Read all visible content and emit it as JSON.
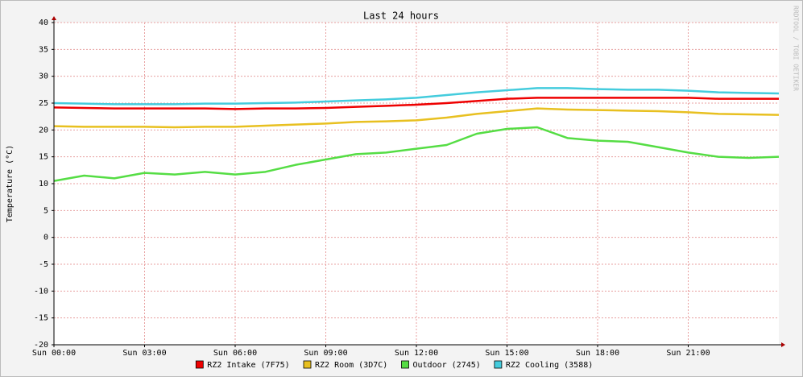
{
  "chart_data": {
    "type": "line",
    "title": "Last 24 hours",
    "y_label": "Temperature (°C)",
    "watermark": "RRDTOOL / TOBI OETIKER",
    "x": [
      0,
      1,
      2,
      3,
      4,
      5,
      6,
      7,
      8,
      9,
      10,
      11,
      12,
      13,
      14,
      15,
      16,
      17,
      18,
      19,
      20,
      21,
      22,
      23,
      24
    ],
    "xlim": [
      0,
      24
    ],
    "xticks": [
      {
        "value": 0,
        "label": "Sun 00:00"
      },
      {
        "value": 3,
        "label": "Sun 03:00"
      },
      {
        "value": 6,
        "label": "Sun 06:00"
      },
      {
        "value": 9,
        "label": "Sun 09:00"
      },
      {
        "value": 12,
        "label": "Sun 12:00"
      },
      {
        "value": 15,
        "label": "Sun 15:00"
      },
      {
        "value": 18,
        "label": "Sun 18:00"
      },
      {
        "value": 21,
        "label": "Sun 21:00"
      }
    ],
    "ylim": [
      -20,
      40
    ],
    "yticks": [
      -20,
      -15,
      -10,
      -5,
      0,
      5,
      10,
      15,
      20,
      25,
      30,
      35,
      40
    ],
    "grid": true,
    "legend": "bottom",
    "series": [
      {
        "name": "RZ2 Intake (7F75)",
        "color": "#ee0000",
        "values": [
          24.2,
          24.1,
          24,
          24,
          24,
          24,
          23.9,
          24,
          24,
          24.1,
          24.3,
          24.5,
          24.7,
          25,
          25.4,
          25.8,
          26,
          26,
          26,
          26,
          26,
          26,
          25.8,
          25.8,
          25.8
        ]
      },
      {
        "name": "RZ2 Room (3D7C)",
        "color": "#e8c020",
        "values": [
          20.7,
          20.6,
          20.6,
          20.6,
          20.5,
          20.6,
          20.6,
          20.8,
          21,
          21.2,
          21.5,
          21.6,
          21.8,
          22.3,
          23,
          23.5,
          24,
          23.8,
          23.7,
          23.6,
          23.5,
          23.3,
          23,
          22.9,
          22.8
        ]
      },
      {
        "name": "Outdoor (2745)",
        "color": "#55dd44",
        "values": [
          10.5,
          11.5,
          11,
          12,
          11.7,
          12.2,
          11.7,
          12.2,
          13.5,
          14.5,
          15.5,
          15.8,
          16.5,
          17.2,
          19.3,
          20.2,
          20.5,
          18.5,
          18,
          17.8,
          16.8,
          15.8,
          15,
          14.8,
          15
        ]
      },
      {
        "name": "RZ2 Cooling (3588)",
        "color": "#44ccdd",
        "values": [
          25,
          24.9,
          24.8,
          24.8,
          24.8,
          24.9,
          24.9,
          25,
          25.1,
          25.3,
          25.5,
          25.7,
          26,
          26.5,
          27,
          27.4,
          27.8,
          27.8,
          27.6,
          27.5,
          27.5,
          27.3,
          27,
          26.9,
          26.8
        ]
      }
    ]
  }
}
